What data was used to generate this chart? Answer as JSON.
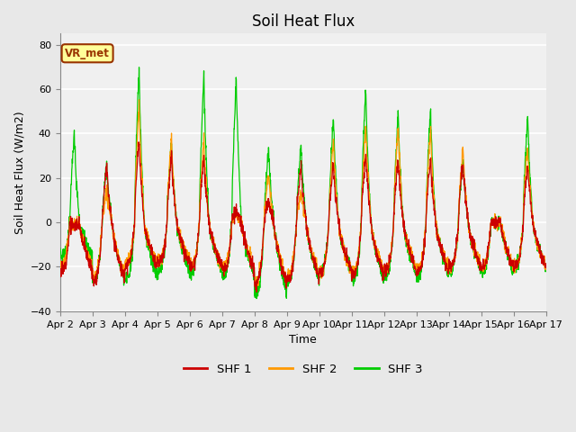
{
  "title": "Soil Heat Flux",
  "xlabel": "Time",
  "ylabel": "Soil Heat Flux (W/m2)",
  "ylim": [
    -40,
    85
  ],
  "yticks": [
    -40,
    -20,
    0,
    20,
    40,
    60,
    80
  ],
  "plot_bg_color": "#e8e8e8",
  "inner_bg_color": "#f0f0f0",
  "shf1_color": "#cc0000",
  "shf2_color": "#ff9900",
  "shf3_color": "#00cc00",
  "legend_label1": "SHF 1",
  "legend_label2": "SHF 2",
  "legend_label3": "SHF 3",
  "watermark_text": "VR_met",
  "watermark_bg": "#ffff99",
  "watermark_border": "#993300",
  "n_days": 15,
  "points_per_day": 144,
  "xticklabels": [
    "Apr 2",
    "Apr 3",
    "Apr 4",
    "Apr 5",
    "Apr 6",
    "Apr 7",
    "Apr 8",
    "Apr 9",
    "Apr 10",
    "Apr 11",
    "Apr 12",
    "Apr 13",
    "Apr 14",
    "Apr 15",
    "Apr 16",
    "Apr 17"
  ]
}
